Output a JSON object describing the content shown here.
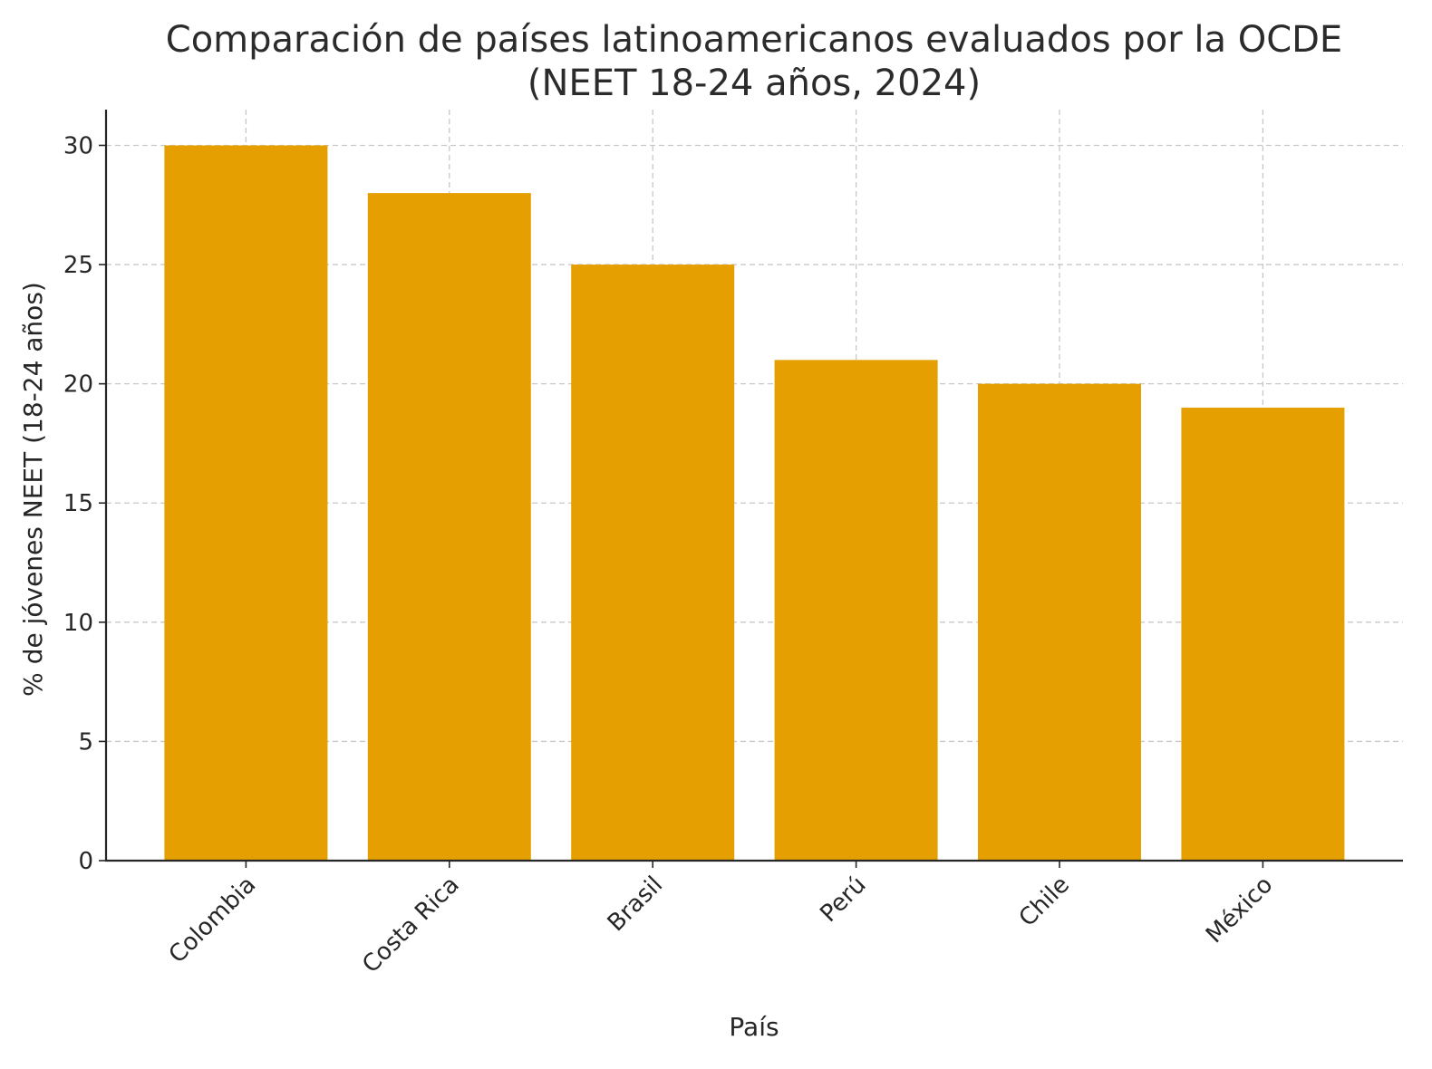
{
  "chart_data": {
    "type": "bar",
    "title_lines": [
      "Comparación de países latinoamericanos evaluados por la OCDE",
      "(NEET 18-24 años, 2024)"
    ],
    "xlabel": "País",
    "ylabel": "% de jóvenes NEET (18-24 años)",
    "categories": [
      "Colombia",
      "Costa Rica",
      "Brasil",
      "Perú",
      "Chile",
      "México"
    ],
    "values": [
      30,
      28,
      25,
      21,
      20,
      19
    ],
    "ylim": [
      0,
      31.5
    ],
    "yticks": [
      0,
      5,
      10,
      15,
      20,
      25,
      30
    ],
    "grid": true,
    "bar_color": "#E69F00"
  }
}
